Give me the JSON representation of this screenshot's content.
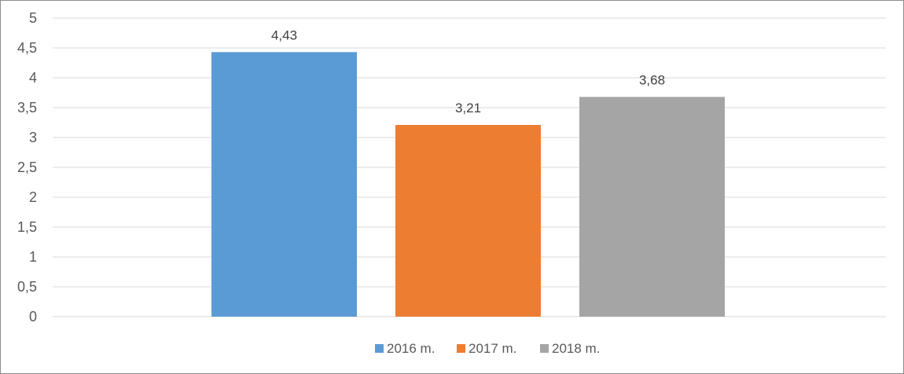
{
  "chart_data": {
    "type": "bar",
    "title": "",
    "xlabel": "",
    "ylabel": "",
    "ylim": [
      0,
      5
    ],
    "yticks": [
      "0",
      "0,5",
      "1",
      "1,5",
      "2",
      "2,5",
      "3",
      "3,5",
      "4",
      "4,5",
      "5"
    ],
    "grid": true,
    "legend_position": "bottom",
    "series": [
      {
        "name": "2016 m.",
        "values": [
          4.43
        ],
        "label": "4,43",
        "color": "#5b9bd5"
      },
      {
        "name": "2017 m.",
        "values": [
          3.21
        ],
        "label": "3,21",
        "color": "#ed7d31"
      },
      {
        "name": "2018 m.",
        "values": [
          3.68
        ],
        "label": "3,68",
        "color": "#a5a5a5"
      }
    ]
  }
}
